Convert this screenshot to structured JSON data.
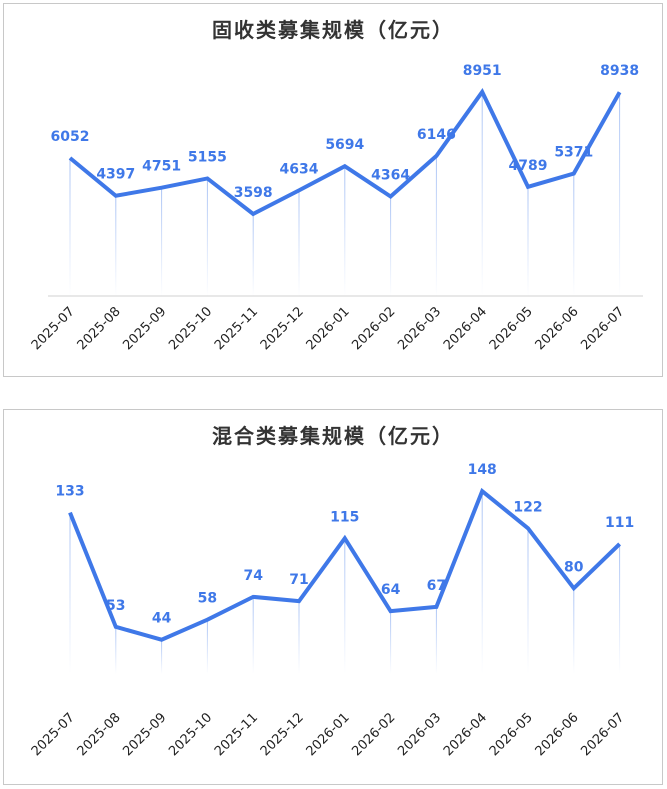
{
  "chart_data": [
    {
      "type": "line",
      "title": "固收类募集规模（亿元）",
      "categories": [
        "2025-07",
        "2025-08",
        "2025-09",
        "2025-10",
        "2025-11",
        "2025-12",
        "2026-01",
        "2026-02",
        "2026-03",
        "2026-04",
        "2026-05",
        "2026-06",
        "2026-07"
      ],
      "values": [
        6052,
        4397,
        4751,
        5155,
        3598,
        4634,
        5694,
        4364,
        6146,
        8951,
        4789,
        5371,
        8938
      ],
      "color": "#3f78e8",
      "ylim": [
        0,
        10000
      ],
      "x_axis_line": true
    },
    {
      "type": "line",
      "title": "混合类募集规模（亿元）",
      "categories": [
        "2025-07",
        "2025-08",
        "2025-09",
        "2025-10",
        "2025-11",
        "2025-12",
        "2026-01",
        "2026-02",
        "2026-03",
        "2026-04",
        "2026-05",
        "2026-06",
        "2026-07"
      ],
      "values": [
        133,
        53,
        44,
        58,
        74,
        71,
        115,
        64,
        67,
        148,
        122,
        80,
        111
      ],
      "color": "#3f78e8",
      "ylim": [
        20,
        160
      ],
      "x_axis_line": false
    }
  ]
}
